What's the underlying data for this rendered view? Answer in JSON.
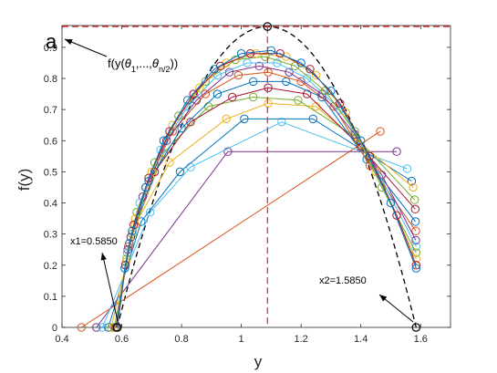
{
  "panel_letter": "a",
  "colors": {
    "envelope": "#000000",
    "max_line": "#d62728",
    "outline": "#000000",
    "series_palette": [
      "#0072BD",
      "#D95319",
      "#EDB120",
      "#7E2F8E",
      "#77AC30",
      "#4DBEEE",
      "#A2142F"
    ]
  },
  "annotations": {
    "x1_label": "x1=0.5850",
    "x2_label": "x2=1.5850",
    "fy_label_prefix": "f(y(",
    "fy_theta": "θ",
    "fy_sub1": "1",
    "fy_mid": ",...,",
    "fy_sub2": "n/2",
    "fy_suffix": "))"
  },
  "chart_data": {
    "type": "line",
    "xlabel": "y",
    "ylabel": "f(y)",
    "xlim": [
      0.4,
      1.7
    ],
    "ylim": [
      0,
      0.97
    ],
    "xticks": [
      0.4,
      0.6,
      0.8,
      1,
      1.2,
      1.4,
      1.6
    ],
    "xtick_labels": [
      "0.4",
      "0.6",
      "0.8",
      "1",
      "1.2",
      "1.4",
      "1.6"
    ],
    "yticks": [
      0,
      0.1,
      0.2,
      0.3,
      0.4,
      0.5,
      0.6,
      0.7,
      0.8,
      0.9
    ],
    "ytick_labels": [
      "0",
      "0.1",
      "0.2",
      "0.3",
      "0.4",
      "0.5",
      "0.6",
      "0.7",
      "0.8",
      "0.9"
    ],
    "grid": false,
    "legend": "none",
    "max_value": 0.9668,
    "argmax": 1.0875,
    "x1": 0.585,
    "x2": 1.585,
    "envelope_peak": [
      1.0875,
      0.9668
    ],
    "series": [
      {
        "color_index": 1,
        "points": [
          [
            0.465,
            0.0
          ],
          [
            1.465,
            0.63
          ]
        ]
      },
      {
        "color_index": 3,
        "points": [
          [
            0.515,
            0.0
          ],
          [
            0.955,
            0.565
          ],
          [
            1.52,
            0.565
          ]
        ]
      },
      {
        "color_index": 5,
        "points": [
          [
            0.535,
            0.0
          ],
          [
            0.695,
            0.37
          ],
          [
            0.83,
            0.515
          ],
          [
            1.135,
            0.66
          ],
          [
            1.555,
            0.51
          ]
        ]
      },
      {
        "color_index": 0,
        "points": [
          [
            0.555,
            0.0
          ],
          [
            0.665,
            0.34
          ],
          [
            0.795,
            0.5
          ],
          [
            1.01,
            0.67
          ],
          [
            1.24,
            0.67
          ],
          [
            1.57,
            0.47
          ]
        ]
      },
      {
        "color_index": 2,
        "points": [
          [
            0.565,
            0.0
          ],
          [
            0.645,
            0.33
          ],
          [
            0.76,
            0.53
          ],
          [
            0.95,
            0.67
          ],
          [
            1.09,
            0.72
          ],
          [
            1.25,
            0.71
          ],
          [
            1.575,
            0.45
          ]
        ]
      },
      {
        "color_index": 4,
        "points": [
          [
            0.575,
            0.0
          ],
          [
            0.635,
            0.3
          ],
          [
            0.74,
            0.56
          ],
          [
            0.89,
            0.71
          ],
          [
            1.04,
            0.74
          ],
          [
            1.19,
            0.73
          ],
          [
            1.385,
            0.61
          ],
          [
            1.58,
            0.41
          ]
        ]
      },
      {
        "color_index": 6,
        "points": [
          [
            0.58,
            0.0
          ],
          [
            0.63,
            0.29
          ],
          [
            0.71,
            0.5
          ],
          [
            0.83,
            0.66
          ],
          [
            0.97,
            0.74
          ],
          [
            1.09,
            0.77
          ],
          [
            1.22,
            0.75
          ],
          [
            1.4,
            0.58
          ],
          [
            1.582,
            0.38
          ]
        ]
      },
      {
        "color_index": 0,
        "points": [
          [
            0.582,
            0.0
          ],
          [
            0.625,
            0.27
          ],
          [
            0.69,
            0.47
          ],
          [
            0.8,
            0.64
          ],
          [
            0.92,
            0.75
          ],
          [
            1.04,
            0.79
          ],
          [
            1.15,
            0.79
          ],
          [
            1.27,
            0.74
          ],
          [
            1.42,
            0.54
          ],
          [
            1.583,
            0.34
          ]
        ]
      },
      {
        "color_index": 1,
        "points": [
          [
            0.583,
            0.0
          ],
          [
            0.622,
            0.26
          ],
          [
            0.68,
            0.45
          ],
          [
            0.77,
            0.63
          ],
          [
            0.88,
            0.75
          ],
          [
            0.99,
            0.81
          ],
          [
            1.09,
            0.82
          ],
          [
            1.2,
            0.79
          ],
          [
            1.31,
            0.71
          ],
          [
            1.43,
            0.52
          ],
          [
            1.584,
            0.31
          ]
        ]
      },
      {
        "color_index": 3,
        "points": [
          [
            0.584,
            0.0
          ],
          [
            0.62,
            0.25
          ],
          [
            0.67,
            0.42
          ],
          [
            0.75,
            0.6
          ],
          [
            0.85,
            0.73
          ],
          [
            0.96,
            0.82
          ],
          [
            1.06,
            0.84
          ],
          [
            1.16,
            0.82
          ],
          [
            1.27,
            0.75
          ],
          [
            1.38,
            0.62
          ],
          [
            1.47,
            0.49
          ],
          [
            1.584,
            0.28
          ]
        ]
      },
      {
        "color_index": 5,
        "points": [
          [
            0.585,
            0.0
          ],
          [
            0.618,
            0.24
          ],
          [
            0.66,
            0.4
          ],
          [
            0.73,
            0.57
          ],
          [
            0.82,
            0.71
          ],
          [
            0.92,
            0.81
          ],
          [
            1.02,
            0.85
          ],
          [
            1.12,
            0.85
          ],
          [
            1.22,
            0.8
          ],
          [
            1.33,
            0.7
          ],
          [
            1.43,
            0.55
          ],
          [
            1.585,
            0.26
          ]
        ]
      },
      {
        "color_index": 4,
        "points": [
          [
            0.585,
            0.0
          ],
          [
            0.616,
            0.22
          ],
          [
            0.65,
            0.37
          ],
          [
            0.71,
            0.53
          ],
          [
            0.79,
            0.68
          ],
          [
            0.88,
            0.79
          ],
          [
            0.98,
            0.86
          ],
          [
            1.08,
            0.87
          ],
          [
            1.18,
            0.84
          ],
          [
            1.28,
            0.76
          ],
          [
            1.38,
            0.63
          ],
          [
            1.47,
            0.45
          ],
          [
            1.585,
            0.24
          ]
        ]
      },
      {
        "color_index": 2,
        "points": [
          [
            0.585,
            0.0
          ],
          [
            0.614,
            0.21
          ],
          [
            0.645,
            0.35
          ],
          [
            0.7,
            0.5
          ],
          [
            0.77,
            0.65
          ],
          [
            0.86,
            0.77
          ],
          [
            0.95,
            0.85
          ],
          [
            1.05,
            0.88
          ],
          [
            1.15,
            0.87
          ],
          [
            1.25,
            0.81
          ],
          [
            1.35,
            0.69
          ],
          [
            1.45,
            0.5
          ],
          [
            1.585,
            0.22
          ]
        ]
      },
      {
        "color_index": 6,
        "points": [
          [
            0.585,
            0.0
          ],
          [
            0.612,
            0.2
          ],
          [
            0.64,
            0.33
          ],
          [
            0.69,
            0.48
          ],
          [
            0.76,
            0.63
          ],
          [
            0.84,
            0.75
          ],
          [
            0.93,
            0.84
          ],
          [
            1.03,
            0.88
          ],
          [
            1.13,
            0.88
          ],
          [
            1.23,
            0.83
          ],
          [
            1.33,
            0.72
          ],
          [
            1.43,
            0.55
          ],
          [
            1.52,
            0.36
          ],
          [
            1.585,
            0.2
          ]
        ]
      },
      {
        "color_index": 0,
        "points": [
          [
            0.585,
            0.0
          ],
          [
            0.61,
            0.19
          ],
          [
            0.635,
            0.31
          ],
          [
            0.68,
            0.45
          ],
          [
            0.74,
            0.6
          ],
          [
            0.82,
            0.73
          ],
          [
            0.91,
            0.83
          ],
          [
            1.0,
            0.88
          ],
          [
            1.1,
            0.89
          ],
          [
            1.2,
            0.85
          ],
          [
            1.3,
            0.76
          ],
          [
            1.4,
            0.6
          ],
          [
            1.5,
            0.4
          ],
          [
            1.585,
            0.19
          ]
        ]
      }
    ]
  }
}
